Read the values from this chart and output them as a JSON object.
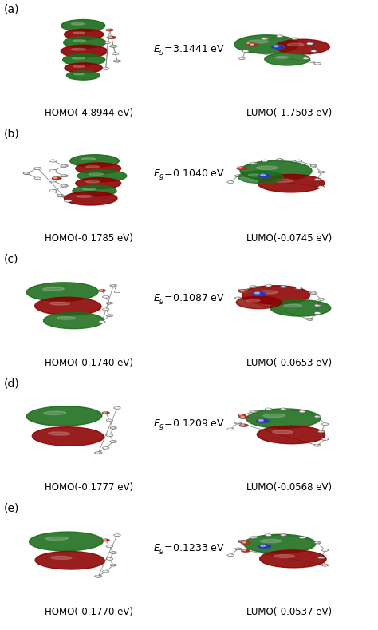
{
  "rows": [
    {
      "label": "(a)",
      "homo_label": "HOMO(-4.8944 eV)",
      "lumo_label": "LUMO(-1.7503 eV)",
      "eg_value": "3.1441"
    },
    {
      "label": "(b)",
      "homo_label": "HOMO(-0.1785 eV)",
      "lumo_label": "LUMO(-0.0745 eV)",
      "eg_value": "0.1040"
    },
    {
      "label": "(c)",
      "homo_label": "HOMO(-0.1740 eV)",
      "lumo_label": "LUMO(-0.0653 eV)",
      "eg_value": "0.1087"
    },
    {
      "label": "(d)",
      "homo_label": "HOMO(-0.1777 eV)",
      "lumo_label": "LUMO(-0.0568 eV)",
      "eg_value": "0.1209"
    },
    {
      "label": "(e)",
      "homo_label": "HOMO(-0.1770 eV)",
      "lumo_label": "LUMO(-0.0537 eV)",
      "eg_value": "0.1233"
    }
  ],
  "background_color": "#ffffff",
  "text_color": "#000000",
  "label_fontsize": 10,
  "sublabel_fontsize": 8.5,
  "eg_fontsize": 9,
  "fig_width": 4.74,
  "fig_height": 7.89,
  "dpi": 100,
  "dark_red": "#8B0000",
  "green": "#1a6b1a",
  "atom_gray": "#bbbbbb",
  "atom_white": "#eeeeee",
  "atom_darkgray": "#999999",
  "atom_red": "#cc2200",
  "atom_blue": "#1a3acc",
  "bond_color": "#888888"
}
